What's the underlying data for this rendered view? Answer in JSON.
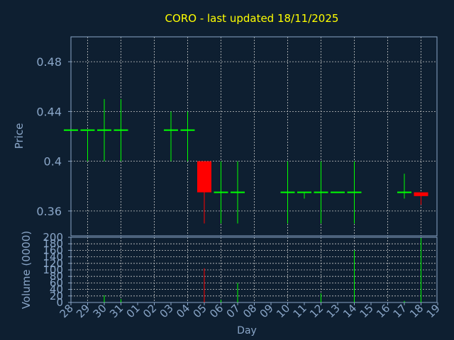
{
  "title": "CORO - last updated 18/11/2025",
  "colors": {
    "background": "#0e1f31",
    "title": "#ffff00",
    "axis_text": "#8aa6c8",
    "frame": "#8aa6c8",
    "grid": "#c8c8c8",
    "up": "#00ff00",
    "down": "#ff0000"
  },
  "chart_data": [
    {
      "type": "candlestick",
      "ylabel": "Price",
      "ylim": [
        0.34,
        0.5
      ],
      "yticks": [
        0.48,
        0.44,
        0.4,
        0.36
      ],
      "ytick_labels": [
        "0.48",
        "0.44",
        "0.4",
        "0.36"
      ],
      "categories": [
        "28",
        "29",
        "30",
        "31",
        "01",
        "02",
        "03",
        "04",
        "05",
        "06",
        "07",
        "08",
        "09",
        "10",
        "11",
        "12",
        "13",
        "14",
        "15",
        "16",
        "17",
        "18",
        "19"
      ],
      "candles": [
        {
          "x": "28",
          "open": 0.425,
          "high": 0.425,
          "low": 0.425,
          "close": 0.425
        },
        {
          "x": "29",
          "open": 0.425,
          "high": 0.425,
          "low": 0.4,
          "close": 0.425
        },
        {
          "x": "30",
          "open": 0.425,
          "high": 0.45,
          "low": 0.4,
          "close": 0.425
        },
        {
          "x": "31",
          "open": 0.425,
          "high": 0.45,
          "low": 0.4,
          "close": 0.425
        },
        {
          "x": "03",
          "open": 0.425,
          "high": 0.44,
          "low": 0.4,
          "close": 0.425
        },
        {
          "x": "04",
          "open": 0.425,
          "high": 0.44,
          "low": 0.4,
          "close": 0.425
        },
        {
          "x": "05",
          "open": 0.4,
          "high": 0.4,
          "low": 0.35,
          "close": 0.375
        },
        {
          "x": "06",
          "open": 0.375,
          "high": 0.4,
          "low": 0.35,
          "close": 0.375
        },
        {
          "x": "07",
          "open": 0.375,
          "high": 0.4,
          "low": 0.35,
          "close": 0.375
        },
        {
          "x": "10",
          "open": 0.375,
          "high": 0.4,
          "low": 0.35,
          "close": 0.375
        },
        {
          "x": "11",
          "open": 0.375,
          "high": 0.375,
          "low": 0.37,
          "close": 0.375
        },
        {
          "x": "12",
          "open": 0.375,
          "high": 0.4,
          "low": 0.35,
          "close": 0.375
        },
        {
          "x": "13",
          "open": 0.375,
          "high": 0.375,
          "low": 0.375,
          "close": 0.375
        },
        {
          "x": "14",
          "open": 0.375,
          "high": 0.4,
          "low": 0.35,
          "close": 0.375
        },
        {
          "x": "17",
          "open": 0.375,
          "high": 0.39,
          "low": 0.37,
          "close": 0.375
        },
        {
          "x": "18",
          "open": 0.375,
          "high": 0.375,
          "low": 0.365,
          "close": 0.372
        }
      ]
    },
    {
      "type": "bar",
      "ylabel": "Volume (0000)",
      "xlabel": "Day",
      "ylim": [
        0,
        200
      ],
      "yticks": [
        0,
        20,
        40,
        60,
        80,
        100,
        120,
        140,
        160,
        180,
        200
      ],
      "ytick_labels": [
        "0",
        "20",
        "40",
        "60",
        "80",
        "100",
        "120",
        "140",
        "160",
        "180",
        "200"
      ],
      "categories": [
        "28",
        "29",
        "30",
        "31",
        "01",
        "02",
        "03",
        "04",
        "05",
        "06",
        "07",
        "08",
        "09",
        "10",
        "11",
        "12",
        "13",
        "14",
        "15",
        "16",
        "17",
        "18",
        "19"
      ],
      "bars": [
        {
          "x": "30",
          "value": 22,
          "dir": "up"
        },
        {
          "x": "31",
          "value": 10,
          "dir": "up"
        },
        {
          "x": "05",
          "value": 105,
          "dir": "down"
        },
        {
          "x": "06",
          "value": 8,
          "dir": "up"
        },
        {
          "x": "07",
          "value": 60,
          "dir": "up"
        },
        {
          "x": "12",
          "value": 28,
          "dir": "up"
        },
        {
          "x": "14",
          "value": 160,
          "dir": "up"
        },
        {
          "x": "17",
          "value": 5,
          "dir": "up"
        },
        {
          "x": "18",
          "value": 198,
          "dir": "up"
        }
      ]
    }
  ]
}
